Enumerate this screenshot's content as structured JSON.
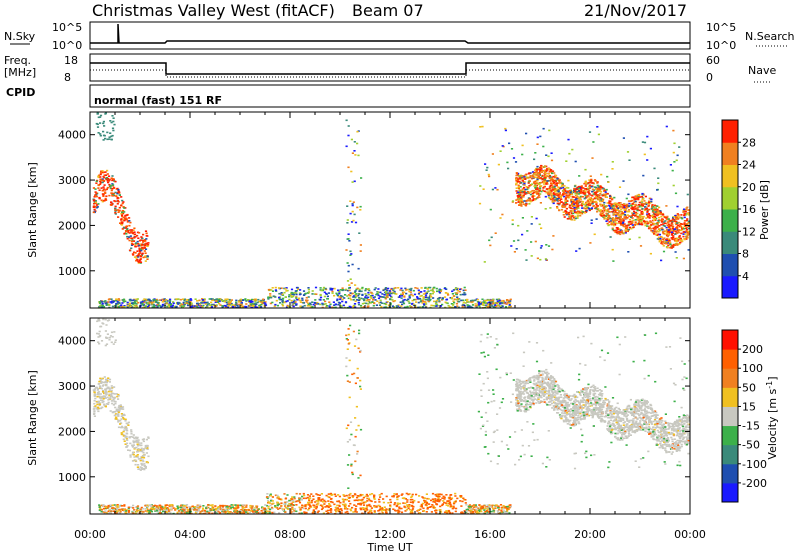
{
  "header": {
    "title": "Christmas Valley West (fitACF)",
    "beam": "Beam 07",
    "date": "21/Nov/2017"
  },
  "status_panels": {
    "nsky_label": "N.Sky",
    "nsearch_label": "N.Search",
    "count_ticks": [
      "10^5",
      "10^0"
    ],
    "freq_label_1": "Freq.",
    "freq_label_2": "[MHz]",
    "freq_ticks": [
      "18",
      "8"
    ],
    "nave_label": "Nave",
    "nave_ticks": [
      "60",
      "0"
    ],
    "cpid_label": "CPID",
    "cpid_text": "normal (fast) 151 RF"
  },
  "chart_data": [
    {
      "type": "heatmap",
      "title": "",
      "ylabel": "Slant Range [km]",
      "xlabel": "Time UT",
      "xlim": [
        "00:00",
        "24:00"
      ],
      "ylim": [
        180,
        4500
      ],
      "y_ticks": [
        1000,
        2000,
        3000,
        4000
      ],
      "x_ticks": [
        "00:00",
        "04:00",
        "08:00",
        "12:00",
        "16:00",
        "20:00",
        "00:00"
      ],
      "colorbar": {
        "label": "Power [dB]",
        "ticks": [
          "4",
          "8",
          "12",
          "16",
          "20",
          "24",
          "28"
        ],
        "colors": [
          "#1a1aff",
          "#1f4fb0",
          "#3a8a7a",
          "#3cb04a",
          "#a0d030",
          "#f0c020",
          "#f08020",
          "#ff2000"
        ]
      }
    },
    {
      "type": "heatmap",
      "title": "",
      "ylabel": "Slant Range [km]",
      "xlabel": "Time UT",
      "xlim": [
        "00:00",
        "24:00"
      ],
      "ylim": [
        180,
        4500
      ],
      "y_ticks": [
        1000,
        2000,
        3000,
        4000
      ],
      "x_ticks": [
        "00:00",
        "04:00",
        "08:00",
        "12:00",
        "16:00",
        "20:00",
        "00:00"
      ],
      "colorbar": {
        "label": "Velocity [m s^-1]",
        "ticks": [
          "200",
          "100",
          "50",
          "15",
          "-15",
          "-50",
          "-100",
          "-200"
        ],
        "colors": [
          "#1a1aff",
          "#1f4fb0",
          "#3a8a7a",
          "#3cb04a",
          "#c8c8c0",
          "#f0c020",
          "#f08020",
          "#ff6000",
          "#ff1000"
        ]
      }
    }
  ]
}
